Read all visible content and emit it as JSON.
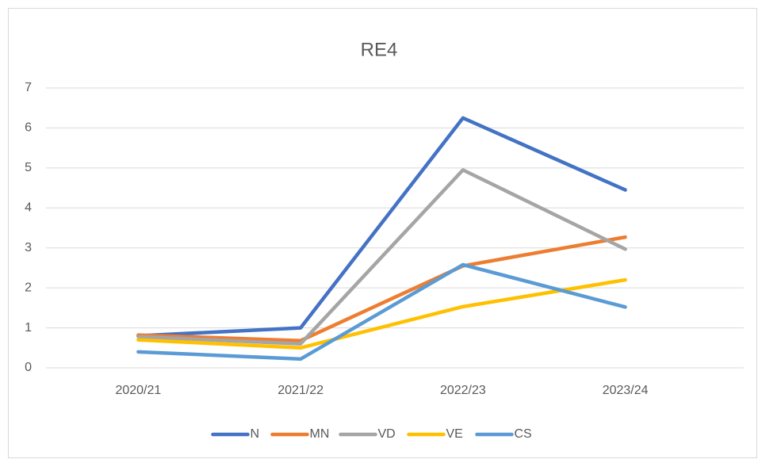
{
  "chart_data": {
    "type": "line",
    "title": "RE4",
    "categories": [
      "2020/21",
      "2021/22",
      "2022/23",
      "2023/24"
    ],
    "series": [
      {
        "name": "N",
        "color": "#4472c4",
        "values": [
          0.8,
          1.0,
          6.25,
          4.45
        ]
      },
      {
        "name": "MN",
        "color": "#ed7d31",
        "values": [
          0.82,
          0.68,
          2.55,
          3.27
        ]
      },
      {
        "name": "VD",
        "color": "#a5a5a5",
        "values": [
          0.78,
          0.6,
          4.95,
          2.97
        ]
      },
      {
        "name": "VE",
        "color": "#ffc000",
        "values": [
          0.7,
          0.5,
          1.53,
          2.2
        ]
      },
      {
        "name": "CS",
        "color": "#5b9bd5",
        "values": [
          0.4,
          0.22,
          2.58,
          1.52
        ]
      }
    ],
    "ylim": [
      0,
      7
    ],
    "yticks": [
      0,
      1,
      2,
      3,
      4,
      5,
      6,
      7
    ],
    "grid": true,
    "legend": "bottom"
  }
}
